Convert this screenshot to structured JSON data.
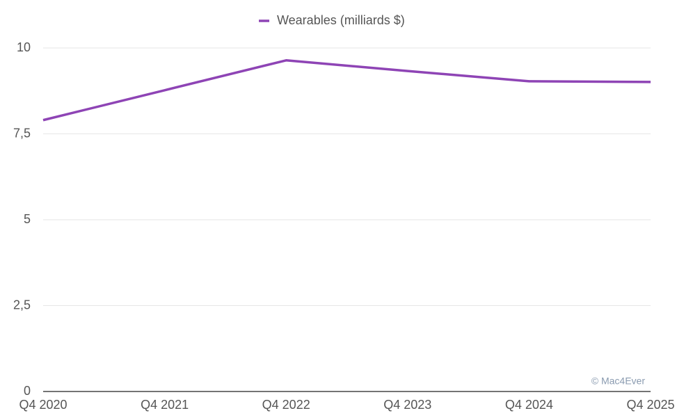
{
  "chart_data": {
    "type": "line",
    "categories": [
      "Q4 2020",
      "Q4 2021",
      "Q4 2022",
      "Q4 2023",
      "Q4 2024",
      "Q4 2025"
    ],
    "series": [
      {
        "name": "Wearables (milliards $)",
        "color": "#8e44b5",
        "values": [
          7.9,
          8.77,
          9.64,
          9.33,
          9.03,
          9.01
        ]
      }
    ],
    "ylim": [
      0,
      10
    ],
    "yticks": [
      0,
      {
        "value": 2.5,
        "label": "2,5"
      },
      5,
      {
        "value": 7.5,
        "label": "7,5"
      },
      10
    ],
    "grid": true,
    "legend": "top",
    "annotation": "© Mac4Ever"
  }
}
